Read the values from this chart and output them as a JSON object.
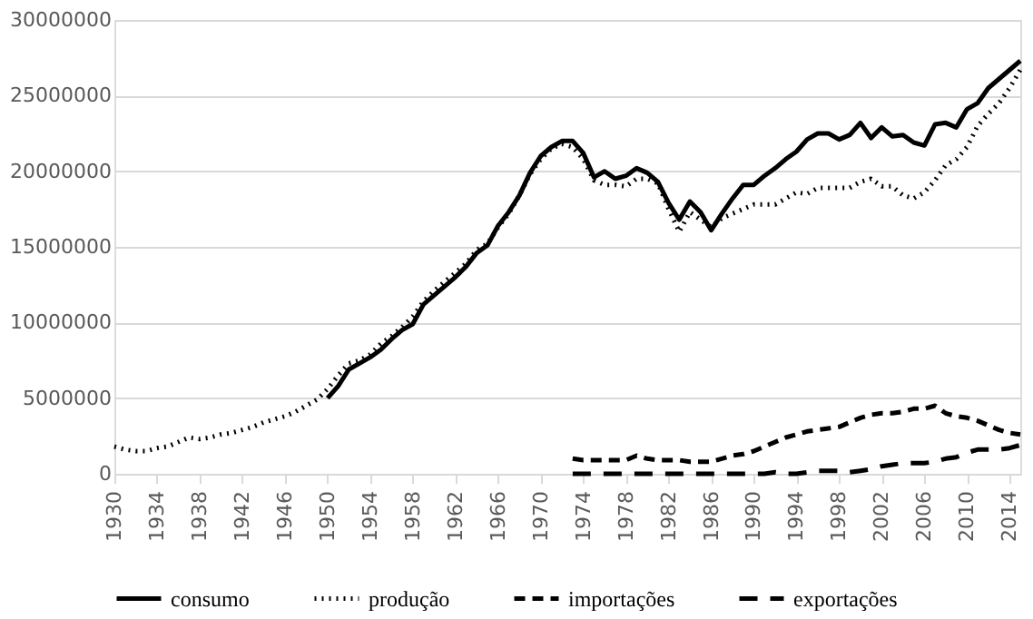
{
  "chart_data": {
    "type": "line",
    "xlim": [
      1930,
      2015
    ],
    "xticks": [
      1930,
      1934,
      1938,
      1942,
      1946,
      1950,
      1954,
      1958,
      1962,
      1966,
      1970,
      1974,
      1978,
      1982,
      1986,
      1990,
      1994,
      1998,
      2002,
      2006,
      2010,
      2014
    ],
    "ylim": [
      0,
      30000000
    ],
    "yticks": [
      0,
      5000000,
      10000000,
      15000000,
      20000000,
      25000000,
      30000000
    ],
    "grid": "y",
    "legend": "bottom",
    "marker": "none",
    "series": [
      {
        "name": "consumo",
        "color": "#000000",
        "line_style": "solid",
        "x": [
          1950,
          1951,
          1952,
          1953,
          1954,
          1955,
          1956,
          1957,
          1958,
          1959,
          1960,
          1961,
          1962,
          1963,
          1964,
          1965,
          1966,
          1967,
          1968,
          1969,
          1970,
          1971,
          1972,
          1973,
          1974,
          1975,
          1976,
          1977,
          1978,
          1979,
          1980,
          1981,
          1982,
          1983,
          1984,
          1985,
          1986,
          1987,
          1988,
          1989,
          1990,
          1991,
          1992,
          1993,
          1994,
          1995,
          1996,
          1997,
          1998,
          1999,
          2000,
          2001,
          2002,
          2003,
          2004,
          2005,
          2006,
          2007,
          2008,
          2009,
          2010,
          2011,
          2012,
          2013,
          2014,
          2015
        ],
        "values": [
          5000000,
          5800000,
          6900000,
          7300000,
          7700000,
          8200000,
          8900000,
          9500000,
          9900000,
          11200000,
          11800000,
          12400000,
          13000000,
          13700000,
          14600000,
          15100000,
          16400000,
          17300000,
          18400000,
          19900000,
          21000000,
          21600000,
          22000000,
          22000000,
          21200000,
          19600000,
          20000000,
          19500000,
          19700000,
          20200000,
          19900000,
          19300000,
          17900000,
          16800000,
          18000000,
          17300000,
          16100000,
          17200000,
          18200000,
          19100000,
          19100000,
          19700000,
          20200000,
          20800000,
          21300000,
          22100000,
          22500000,
          22500000,
          22100000,
          22400000,
          23200000,
          22200000,
          22900000,
          22300000,
          22400000,
          21900000,
          21700000,
          23100000,
          23200000,
          22900000,
          24100000,
          24500000,
          25500000,
          26100000,
          26700000,
          27300000
        ]
      },
      {
        "name": "produção",
        "color": "#000000",
        "line_style": "dotted",
        "x": [
          1930,
          1931,
          1932,
          1933,
          1934,
          1935,
          1936,
          1937,
          1938,
          1939,
          1940,
          1941,
          1942,
          1943,
          1944,
          1945,
          1946,
          1947,
          1948,
          1949,
          1950,
          1951,
          1952,
          1953,
          1954,
          1955,
          1956,
          1957,
          1958,
          1959,
          1960,
          1961,
          1962,
          1963,
          1964,
          1965,
          1966,
          1967,
          1968,
          1969,
          1970,
          1971,
          1972,
          1973,
          1974,
          1975,
          1976,
          1977,
          1978,
          1979,
          1980,
          1981,
          1982,
          1983,
          1984,
          1985,
          1986,
          1987,
          1988,
          1989,
          1990,
          1991,
          1992,
          1993,
          1994,
          1995,
          1996,
          1997,
          1998,
          1999,
          2000,
          2001,
          2002,
          2003,
          2004,
          2005,
          2006,
          2007,
          2008,
          2009,
          2010,
          2011,
          2012,
          2013,
          2014,
          2015
        ],
        "values": [
          1800000,
          1600000,
          1500000,
          1500000,
          1700000,
          1800000,
          2100000,
          2400000,
          2300000,
          2400000,
          2600000,
          2700000,
          2900000,
          3100000,
          3400000,
          3600000,
          3800000,
          4100000,
          4500000,
          4900000,
          5600000,
          6500000,
          7300000,
          7500000,
          7900000,
          8600000,
          9100000,
          9700000,
          10400000,
          11400000,
          12100000,
          12700000,
          13300000,
          13900000,
          14800000,
          15200000,
          16300000,
          17200000,
          18400000,
          19800000,
          20800000,
          21500000,
          21800000,
          21600000,
          20800000,
          19400000,
          19100000,
          19100000,
          19000000,
          19500000,
          19500000,
          19200000,
          17500000,
          16000000,
          17300000,
          16800000,
          16300000,
          16900000,
          17200000,
          17500000,
          17800000,
          17800000,
          17800000,
          18200000,
          18600000,
          18500000,
          18900000,
          18900000,
          18900000,
          18900000,
          19300000,
          19500000,
          19000000,
          19000000,
          18400000,
          18200000,
          18600000,
          19400000,
          20400000,
          20800000,
          21600000,
          23000000,
          23800000,
          24500000,
          25500000,
          26700000
        ]
      },
      {
        "name": "importações",
        "color": "#000000",
        "line_style": "dashed",
        "x": [
          1973,
          1974,
          1975,
          1976,
          1977,
          1978,
          1979,
          1980,
          1981,
          1982,
          1983,
          1984,
          1985,
          1986,
          1987,
          1988,
          1989,
          1990,
          1991,
          1992,
          1993,
          1994,
          1995,
          1996,
          1997,
          1998,
          1999,
          2000,
          2001,
          2002,
          2003,
          2004,
          2005,
          2006,
          2007,
          2008,
          2009,
          2010,
          2011,
          2012,
          2013,
          2014,
          2015
        ],
        "values": [
          1000000,
          900000,
          900000,
          900000,
          900000,
          900000,
          1200000,
          1000000,
          900000,
          900000,
          900000,
          800000,
          800000,
          800000,
          1000000,
          1200000,
          1300000,
          1500000,
          1800000,
          2100000,
          2400000,
          2600000,
          2800000,
          2900000,
          3000000,
          3100000,
          3400000,
          3700000,
          3900000,
          4000000,
          4000000,
          4100000,
          4300000,
          4300000,
          4500000,
          4000000,
          3800000,
          3700000,
          3500000,
          3200000,
          2900000,
          2700000,
          2600000
        ]
      },
      {
        "name": "exportações",
        "color": "#000000",
        "line_style": "dashed",
        "x": [
          1973,
          1974,
          1975,
          1976,
          1977,
          1978,
          1979,
          1980,
          1981,
          1982,
          1983,
          1984,
          1985,
          1986,
          1987,
          1988,
          1989,
          1990,
          1991,
          1992,
          1993,
          1994,
          1995,
          1996,
          1997,
          1998,
          1999,
          2000,
          2001,
          2002,
          2003,
          2004,
          2005,
          2006,
          2007,
          2008,
          2009,
          2010,
          2011,
          2012,
          2013,
          2014,
          2015
        ],
        "values": [
          0,
          0,
          0,
          0,
          0,
          0,
          0,
          0,
          0,
          0,
          0,
          0,
          0,
          0,
          0,
          0,
          0,
          0,
          0,
          100000,
          0,
          0,
          100000,
          200000,
          200000,
          200000,
          100000,
          200000,
          300000,
          500000,
          600000,
          700000,
          700000,
          700000,
          800000,
          1000000,
          1100000,
          1400000,
          1600000,
          1600000,
          1600000,
          1700000,
          1900000
        ]
      }
    ]
  }
}
